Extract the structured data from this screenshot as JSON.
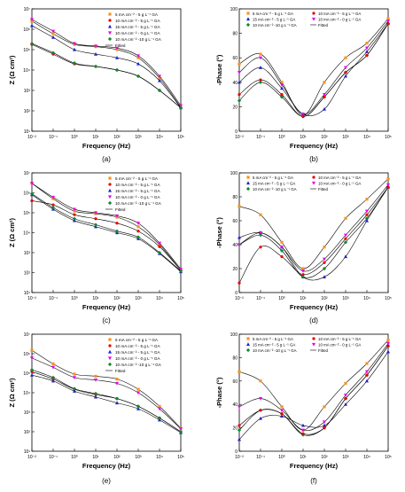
{
  "figure": {
    "panels": [
      "(a)",
      "(b)",
      "(c)",
      "(d)",
      "(e)",
      "(f)"
    ]
  },
  "chart_data": [
    {
      "type": "scatter",
      "panel_label": "(a)",
      "xlabel": "Frequency (Hz)",
      "ylabel": "Z (Ω cm²)",
      "xscale": "log",
      "yscale": "log",
      "xlim": [
        0.01,
        100000
      ],
      "ylim": [
        10,
        10000000
      ],
      "x_ticks": [
        "10⁻²",
        "10⁻¹",
        "10⁰",
        "10¹",
        "10²",
        "10³",
        "10⁴",
        "10⁵"
      ],
      "y_ticks": [
        "10¹",
        "10²",
        "10³",
        "10⁴",
        "10⁵",
        "10⁶",
        "10⁷"
      ],
      "legend_position": "top-right",
      "legend_columns": 1,
      "x": [
        0.01,
        0.1,
        1,
        10,
        100,
        1000,
        10000,
        100000
      ],
      "series": [
        {
          "name": "5 mA cm⁻² - 5 g L⁻¹ GA",
          "color": "#f7941d",
          "marker": "square",
          "values": [
            2500000,
            600000,
            180000,
            140000,
            100000,
            40000,
            4000,
            150
          ]
        },
        {
          "name": "10 mA cm⁻² - 5 g L⁻¹ GA",
          "color": "#e60000",
          "marker": "circle",
          "values": [
            180000,
            60000,
            20000,
            15000,
            10000,
            5000,
            1000,
            140
          ]
        },
        {
          "name": "15 mA cm⁻² - 5 g L⁻¹ GA",
          "color": "#1e22c8",
          "marker": "triangle-up",
          "values": [
            1500000,
            400000,
            100000,
            60000,
            40000,
            20000,
            3000,
            140
          ]
        },
        {
          "name": "10 mA cm⁻² - 0 g L⁻¹ GA",
          "color": "#e600e6",
          "marker": "triangle-down",
          "values": [
            3000000,
            800000,
            200000,
            150000,
            120000,
            50000,
            5000,
            180
          ]
        },
        {
          "name": "10 mA cm⁻² -10 g L⁻¹ GA",
          "color": "#0a8a2e",
          "marker": "diamond",
          "values": [
            200000,
            70000,
            22000,
            15000,
            10000,
            5000,
            1000,
            140
          ]
        }
      ],
      "fitted_label": "Fitted"
    },
    {
      "type": "scatter",
      "panel_label": "(b)",
      "xlabel": "Frequency (Hz)",
      "ylabel": "-Phase (°)",
      "xscale": "log",
      "xlim": [
        0.01,
        100000
      ],
      "ylim": [
        0,
        100
      ],
      "x_ticks": [
        "10⁻²",
        "10⁻¹",
        "10⁰",
        "10¹",
        "10²",
        "10³",
        "10⁴",
        "10⁵"
      ],
      "y_ticks": [
        "0",
        "20",
        "40",
        "60",
        "80",
        "100"
      ],
      "legend_position": "top",
      "legend_columns": 2,
      "x": [
        0.01,
        0.1,
        1,
        10,
        100,
        1000,
        10000,
        100000
      ],
      "series": [
        {
          "name": "5 mA cm⁻² - 5 g L⁻¹ GA",
          "color": "#f7941d",
          "marker": "square",
          "values": [
            55,
            63,
            40,
            13,
            40,
            60,
            72,
            92
          ]
        },
        {
          "name": "15 mA cm⁻² - 5 g L⁻¹ GA",
          "color": "#1e22c8",
          "marker": "triangle-up",
          "values": [
            40,
            52,
            35,
            14,
            18,
            45,
            65,
            88
          ]
        },
        {
          "name": "10 mA cm⁻² -10 g L⁻¹ GA",
          "color": "#0a8a2e",
          "marker": "diamond",
          "values": [
            25,
            40,
            28,
            12,
            28,
            48,
            62,
            88
          ]
        },
        {
          "name": "10 mA cm⁻² - 5 g L⁻¹ GA",
          "color": "#e60000",
          "marker": "circle",
          "values": [
            30,
            42,
            30,
            12,
            28,
            48,
            62,
            88
          ]
        },
        {
          "name": "10 mA cm⁻² - 0 g L⁻¹ GA",
          "color": "#e600e6",
          "marker": "triangle-down",
          "values": [
            48,
            60,
            38,
            14,
            30,
            52,
            68,
            90
          ]
        }
      ],
      "fitted_label": "Fitted"
    },
    {
      "type": "scatter",
      "panel_label": "(c)",
      "xlabel": "Frequency (Hz)",
      "ylabel": "Z (Ω cm²)",
      "xscale": "log",
      "yscale": "log",
      "xlim": [
        0.01,
        100000
      ],
      "ylim": [
        10,
        10000000
      ],
      "x_ticks": [
        "10⁻²",
        "10⁻¹",
        "10⁰",
        "10¹",
        "10²",
        "10³",
        "10⁴",
        "10⁵"
      ],
      "y_ticks": [
        "10¹",
        "10²",
        "10³",
        "10⁴",
        "10⁵",
        "10⁶",
        "10⁷"
      ],
      "legend_position": "top-right",
      "legend_columns": 1,
      "x": [
        0.01,
        0.1,
        1,
        10,
        100,
        1000,
        10000,
        100000
      ],
      "series": [
        {
          "name": "5 mA cm⁻² - 5 g L⁻¹ GA",
          "color": "#f7941d",
          "marker": "square",
          "values": [
            3000000,
            500000,
            120000,
            90000,
            60000,
            20000,
            2500,
            130
          ]
        },
        {
          "name": "10 mA cm⁻² - 5 g L⁻¹ GA",
          "color": "#e60000",
          "marker": "circle",
          "values": [
            400000,
            250000,
            80000,
            50000,
            30000,
            12000,
            2000,
            130
          ]
        },
        {
          "name": "15 mA cm⁻² - 5 g L⁻¹ GA",
          "color": "#1e22c8",
          "marker": "triangle-up",
          "values": [
            800000,
            150000,
            40000,
            20000,
            10000,
            5000,
            900,
            110
          ]
        },
        {
          "name": "10 mA cm⁻² - 0 g L⁻¹ GA",
          "color": "#e600e6",
          "marker": "triangle-down",
          "values": [
            3000000,
            600000,
            150000,
            100000,
            70000,
            30000,
            3000,
            150
          ]
        },
        {
          "name": "10 mA cm⁻² -10 g L⁻¹ GA",
          "color": "#0a8a2e",
          "marker": "diamond",
          "values": [
            900000,
            180000,
            50000,
            25000,
            12000,
            6000,
            1000,
            120
          ]
        }
      ],
      "fitted_label": "Fitted"
    },
    {
      "type": "scatter",
      "panel_label": "(d)",
      "xlabel": "Frequency (Hz)",
      "ylabel": "-Phase (°)",
      "xscale": "log",
      "xlim": [
        0.01,
        100000
      ],
      "ylim": [
        0,
        100
      ],
      "x_ticks": [
        "10⁻²",
        "10⁻¹",
        "10⁰",
        "10¹",
        "10²",
        "10³",
        "10⁴",
        "10⁵"
      ],
      "y_ticks": [
        "0",
        "20",
        "40",
        "60",
        "80",
        "100"
      ],
      "legend_position": "top",
      "legend_columns": 2,
      "x": [
        0.01,
        0.1,
        1,
        10,
        100,
        1000,
        10000,
        100000
      ],
      "series": [
        {
          "name": "5 mA cm⁻² - 5 g L⁻¹ GA",
          "color": "#f7941d",
          "marker": "square",
          "values": [
            72,
            65,
            42,
            20,
            38,
            62,
            78,
            95
          ]
        },
        {
          "name": "15 mA cm⁻² - 5 g L⁻¹ GA",
          "color": "#1e22c8",
          "marker": "triangle-up",
          "values": [
            46,
            50,
            38,
            13,
            13,
            30,
            60,
            88
          ]
        },
        {
          "name": "10 mA cm⁻² -10 g L⁻¹ GA",
          "color": "#0a8a2e",
          "marker": "diamond",
          "values": [
            40,
            48,
            35,
            13,
            20,
            42,
            62,
            88
          ]
        },
        {
          "name": "10 mA cm⁻² - 5 g L⁻¹ GA",
          "color": "#e60000",
          "marker": "circle",
          "values": [
            8,
            38,
            30,
            15,
            25,
            45,
            65,
            88
          ]
        },
        {
          "name": "10 mA cm⁻² - 0 g L⁻¹ GA",
          "color": "#e600e6",
          "marker": "triangle-down",
          "values": [
            40,
            50,
            38,
            18,
            28,
            48,
            68,
            90
          ]
        }
      ],
      "fitted_label": "Fitted"
    },
    {
      "type": "scatter",
      "panel_label": "(e)",
      "xlabel": "Frequency (Hz)",
      "ylabel": "Z (Ω cm²)",
      "xscale": "log",
      "yscale": "log",
      "xlim": [
        0.01,
        100000
      ],
      "ylim": [
        10,
        10000000
      ],
      "x_ticks": [
        "10⁻²",
        "10⁻¹",
        "10⁰",
        "10¹",
        "10²",
        "10³",
        "10⁴",
        "10⁵"
      ],
      "y_ticks": [
        "10¹",
        "10²",
        "10³",
        "10⁴",
        "10⁵",
        "10⁶",
        "10⁷"
      ],
      "legend_position": "top-right",
      "legend_columns": 1,
      "x": [
        0.01,
        0.1,
        1,
        10,
        100,
        1000,
        10000,
        100000
      ],
      "series": [
        {
          "name": "5 mA cm⁻² - 5 g L⁻¹ GA",
          "color": "#f7941d",
          "marker": "square",
          "values": [
            1500000,
            300000,
            90000,
            70000,
            50000,
            15000,
            2000,
            150
          ]
        },
        {
          "name": "10 mA cm⁻² - 5 g L⁻¹ GA",
          "color": "#e60000",
          "marker": "circle",
          "values": [
            120000,
            50000,
            15000,
            8000,
            5000,
            2000,
            500,
            100
          ]
        },
        {
          "name": "15 mA cm⁻² - 5 g L⁻¹ GA",
          "color": "#1e22c8",
          "marker": "triangle-up",
          "values": [
            80000,
            40000,
            12000,
            6000,
            3000,
            1500,
            400,
            90
          ]
        },
        {
          "name": "10 mA cm⁻² - 0 g L⁻¹ GA",
          "color": "#e600e6",
          "marker": "triangle-down",
          "values": [
            600000,
            200000,
            60000,
            45000,
            30000,
            10000,
            1500,
            140
          ]
        },
        {
          "name": "10 mA cm⁻² -10 g L⁻¹ GA",
          "color": "#0a8a2e",
          "marker": "diamond",
          "values": [
            150000,
            60000,
            16000,
            9000,
            5000,
            2000,
            500,
            100
          ]
        }
      ],
      "fitted_label": "Fitted"
    },
    {
      "type": "scatter",
      "panel_label": "(f)",
      "xlabel": "Frequency (Hz)",
      "ylabel": "-Phase (°)",
      "xscale": "log",
      "xlim": [
        0.01,
        100000
      ],
      "ylim": [
        0,
        100
      ],
      "x_ticks": [
        "10⁻²",
        "10⁻¹",
        "10⁰",
        "10¹",
        "10²",
        "10³",
        "10⁴",
        "10⁵"
      ],
      "y_ticks": [
        "0",
        "20",
        "40",
        "60",
        "80",
        "100"
      ],
      "legend_position": "top",
      "legend_columns": 2,
      "x": [
        0.01,
        0.1,
        1,
        10,
        100,
        1000,
        10000,
        100000
      ],
      "series": [
        {
          "name": "5 mA cm⁻² - 5 g L⁻¹ GA",
          "color": "#f7941d",
          "marker": "square",
          "values": [
            68,
            60,
            38,
            18,
            38,
            58,
            75,
            95
          ]
        },
        {
          "name": "15 mA cm⁻² - 5 g L⁻¹ GA",
          "color": "#1e22c8",
          "marker": "triangle-up",
          "values": [
            10,
            28,
            30,
            22,
            22,
            40,
            60,
            85
          ]
        },
        {
          "name": "10 mA cm⁻² -10 g L⁻¹ GA",
          "color": "#0a8a2e",
          "marker": "diamond",
          "values": [
            18,
            35,
            32,
            14,
            20,
            45,
            65,
            90
          ]
        },
        {
          "name": "10 mA cm⁻² - 5 g L⁻¹ GA",
          "color": "#e60000",
          "marker": "circle",
          "values": [
            22,
            35,
            32,
            15,
            20,
            45,
            65,
            90
          ]
        },
        {
          "name": "10 mA cm⁻² - 0 g L⁻¹ GA",
          "color": "#e600e6",
          "marker": "triangle-down",
          "values": [
            38,
            45,
            35,
            18,
            25,
            48,
            68,
            92
          ]
        }
      ],
      "fitted_label": "Fitted"
    }
  ]
}
